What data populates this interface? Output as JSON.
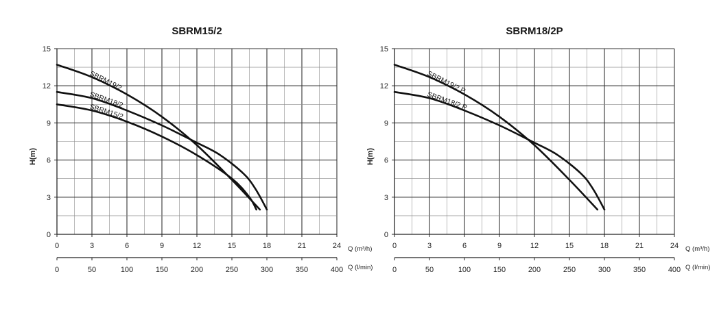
{
  "chart_data": [
    {
      "type": "line",
      "title": "SBRM15/2",
      "ylabel": "H(m)",
      "xlabel": "Q (m³/h)",
      "x2label": "Q (l/min)",
      "xlim": [
        0,
        24
      ],
      "ylim": [
        0,
        15
      ],
      "x_ticks": [
        "0",
        "3",
        "6",
        "9",
        "12",
        "15",
        "18",
        "21",
        "24"
      ],
      "x2_ticks": [
        "0",
        "50",
        "100",
        "150",
        "200",
        "250",
        "300",
        "350",
        "400"
      ],
      "y_ticks": [
        "0",
        "3",
        "6",
        "9",
        "12",
        "15"
      ],
      "grid": true,
      "series": [
        {
          "name": "SBRM19/2",
          "x": [
            0,
            3,
            6,
            9,
            12,
            15,
            17.4
          ],
          "y": [
            13.7,
            12.7,
            11.3,
            9.5,
            7.2,
            4.4,
            2.0
          ]
        },
        {
          "name": "SBRM18/2",
          "x": [
            0,
            3,
            6,
            9,
            12,
            14,
            16,
            17,
            18
          ],
          "y": [
            11.5,
            11.0,
            10.0,
            8.8,
            7.4,
            6.4,
            4.9,
            3.7,
            2.0
          ]
        },
        {
          "name": "SBRM15/2",
          "x": [
            0,
            3,
            6,
            9,
            12,
            15,
            16.5,
            17.1
          ],
          "y": [
            10.5,
            10.0,
            9.1,
            7.9,
            6.4,
            4.5,
            3.0,
            2.0
          ]
        }
      ]
    },
    {
      "type": "line",
      "title": "SBRM18/2P",
      "ylabel": "H(m)",
      "xlabel": "Q (m³/h)",
      "x2label": "Q (l/min)",
      "xlim": [
        0,
        24
      ],
      "ylim": [
        0,
        15
      ],
      "x_ticks": [
        "0",
        "3",
        "6",
        "9",
        "12",
        "15",
        "18",
        "21",
        "24"
      ],
      "x2_ticks": [
        "0",
        "50",
        "100",
        "150",
        "200",
        "250",
        "300",
        "350",
        "400"
      ],
      "y_ticks": [
        "0",
        "3",
        "6",
        "9",
        "12",
        "15"
      ],
      "grid": true,
      "series": [
        {
          "name": "SBRM19/2 P",
          "x": [
            0,
            3,
            6,
            9,
            12,
            15,
            17.4
          ],
          "y": [
            13.7,
            12.7,
            11.3,
            9.5,
            7.2,
            4.4,
            2.0
          ]
        },
        {
          "name": "SBRM18/2 P",
          "x": [
            0,
            3,
            6,
            9,
            12,
            14,
            16,
            17,
            18
          ],
          "y": [
            11.5,
            11.0,
            10.0,
            8.8,
            7.4,
            6.4,
            4.9,
            3.7,
            2.0
          ]
        }
      ]
    }
  ],
  "colors": {
    "curve": "#111111",
    "grid": "#6e6e6e",
    "axis": "#222222"
  }
}
